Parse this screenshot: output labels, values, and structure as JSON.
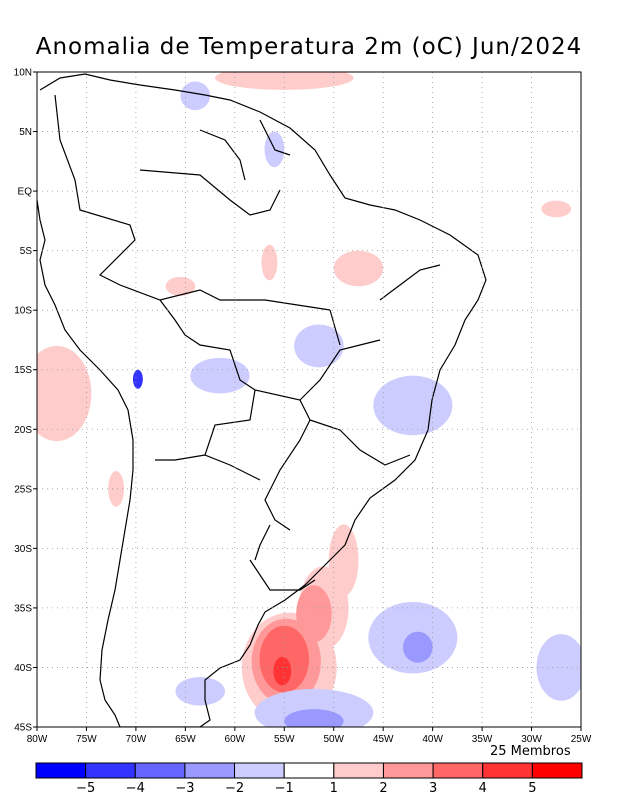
{
  "title": "Anomalia de Temperatura 2m (oC) Jun/2024",
  "members_label": "25 Membros",
  "lat_ticks": [
    {
      "label": "10N",
      "lat": 10
    },
    {
      "label": "5N",
      "lat": 5
    },
    {
      "label": "EQ",
      "lat": 0
    },
    {
      "label": "5S",
      "lat": -5
    },
    {
      "label": "10S",
      "lat": -10
    },
    {
      "label": "15S",
      "lat": -15
    },
    {
      "label": "20S",
      "lat": -20
    },
    {
      "label": "25S",
      "lat": -25
    },
    {
      "label": "30S",
      "lat": -30
    },
    {
      "label": "35S",
      "lat": -35
    },
    {
      "label": "40S",
      "lat": -40
    },
    {
      "label": "45S",
      "lat": -45
    }
  ],
  "lon_ticks": [
    {
      "label": "80W",
      "lon": -80
    },
    {
      "label": "75W",
      "lon": -75
    },
    {
      "label": "70W",
      "lon": -70
    },
    {
      "label": "65W",
      "lon": -65
    },
    {
      "label": "60W",
      "lon": -60
    },
    {
      "label": "55W",
      "lon": -55
    },
    {
      "label": "50W",
      "lon": -50
    },
    {
      "label": "45W",
      "lon": -45
    },
    {
      "label": "40W",
      "lon": -40
    },
    {
      "label": "35W",
      "lon": -35
    },
    {
      "label": "30W",
      "lon": -30
    },
    {
      "label": "25W",
      "lon": -25
    }
  ],
  "extent": {
    "lon_min": -80,
    "lon_max": -25,
    "lat_min": -45,
    "lat_max": 10
  },
  "colorbar": {
    "colors": [
      "#0000ff",
      "#3333ff",
      "#6666ff",
      "#9999ff",
      "#ccccff",
      "#ffffff",
      "#ffcccc",
      "#ff9999",
      "#ff6666",
      "#ff3333",
      "#ff0000"
    ],
    "labels": [
      "-5",
      "-4",
      "-3",
      "-2",
      "-1",
      "1",
      "2",
      "3",
      "4",
      "5"
    ]
  },
  "anomaly_patches": [
    {
      "name": "patagonia-warm-1",
      "lon": -54.5,
      "lat": -40.0,
      "rx": 4.8,
      "ry": 4.6,
      "color": "#ffcccc"
    },
    {
      "name": "patagonia-warm-1b",
      "lon": -51.0,
      "lat": -35.0,
      "rx": 2.5,
      "ry": 3.5,
      "color": "#ffcccc"
    },
    {
      "name": "patagonia-warm-1c",
      "lon": -49.0,
      "lat": -31.0,
      "rx": 1.5,
      "ry": 3.0,
      "color": "#ffcccc"
    },
    {
      "name": "patagonia-warm-2",
      "lon": -54.8,
      "lat": -39.5,
      "rx": 3.5,
      "ry": 3.6,
      "color": "#ff9999"
    },
    {
      "name": "patagonia-warm-2b",
      "lon": -52.0,
      "lat": -35.5,
      "rx": 1.8,
      "ry": 2.4,
      "color": "#ff9999"
    },
    {
      "name": "patagonia-warm-3",
      "lon": -55.0,
      "lat": -39.3,
      "rx": 2.5,
      "ry": 2.8,
      "color": "#ff6666"
    },
    {
      "name": "patagonia-warm-4",
      "lon": -55.2,
      "lat": -40.3,
      "rx": 0.9,
      "ry": 1.2,
      "color": "#ff3333"
    },
    {
      "name": "south-atlantic-cool-1",
      "lon": -42.0,
      "lat": -37.5,
      "rx": 4.5,
      "ry": 3.0,
      "color": "#ccccff"
    },
    {
      "name": "south-atlantic-cool-2",
      "lon": -41.5,
      "lat": -38.3,
      "rx": 1.5,
      "ry": 1.3,
      "color": "#9999ff"
    },
    {
      "name": "south-cool-3",
      "lon": -52.0,
      "lat": -43.8,
      "rx": 6.0,
      "ry": 2.0,
      "color": "#ccccff"
    },
    {
      "name": "south-cool-4",
      "lon": -52.0,
      "lat": -44.5,
      "rx": 3.0,
      "ry": 1.0,
      "color": "#9999ff"
    },
    {
      "name": "east-cool",
      "lon": -27.0,
      "lat": -40.0,
      "rx": 2.5,
      "ry": 2.8,
      "color": "#ccccff"
    },
    {
      "name": "southeast-brazil-cool",
      "lon": -42.0,
      "lat": -18.0,
      "rx": 4.0,
      "ry": 2.5,
      "color": "#ccccff"
    },
    {
      "name": "central-brazil-cool",
      "lon": -51.5,
      "lat": -13.0,
      "rx": 2.5,
      "ry": 1.8,
      "color": "#ccccff"
    },
    {
      "name": "mato-grosso-cool",
      "lon": -61.5,
      "lat": -15.5,
      "rx": 3.0,
      "ry": 1.5,
      "color": "#ccccff"
    },
    {
      "name": "titicaca-cool",
      "lon": -69.8,
      "lat": -15.8,
      "rx": 0.5,
      "ry": 0.8,
      "color": "#3333ff"
    },
    {
      "name": "north-cool",
      "lon": -64.0,
      "lat": 8.0,
      "rx": 1.5,
      "ry": 1.2,
      "color": "#ccccff"
    },
    {
      "name": "guyana-cool",
      "lon": -56.0,
      "lat": 3.5,
      "rx": 1.0,
      "ry": 1.5,
      "color": "#ccccff"
    },
    {
      "name": "pacific-warm",
      "lon": -78.0,
      "lat": -17.0,
      "rx": 3.5,
      "ry": 4.0,
      "color": "#ffcccc"
    },
    {
      "name": "atlantic-north-warm",
      "lon": -55.0,
      "lat": 9.5,
      "rx": 7.0,
      "ry": 1.0,
      "color": "#ffcccc"
    },
    {
      "name": "east-warm",
      "lon": -27.5,
      "lat": -1.5,
      "rx": 1.5,
      "ry": 0.7,
      "color": "#ffcccc"
    },
    {
      "name": "amazon-warm",
      "lon": -56.5,
      "lat": -6.0,
      "rx": 0.8,
      "ry": 1.5,
      "color": "#ffcccc"
    },
    {
      "name": "northeast-warm",
      "lon": -47.5,
      "lat": -6.5,
      "rx": 2.5,
      "ry": 1.5,
      "color": "#ffcccc"
    },
    {
      "name": "bolivia-warm",
      "lon": -65.5,
      "lat": -8.0,
      "rx": 1.5,
      "ry": 0.8,
      "color": "#ffcccc"
    },
    {
      "name": "pampa-cool",
      "lon": -63.5,
      "lat": -42.0,
      "rx": 2.5,
      "ry": 1.2,
      "color": "#ccccff"
    },
    {
      "name": "andes-warm",
      "lon": -72.0,
      "lat": -25.0,
      "rx": 0.8,
      "ry": 1.5,
      "color": "#ffcccc"
    }
  ]
}
